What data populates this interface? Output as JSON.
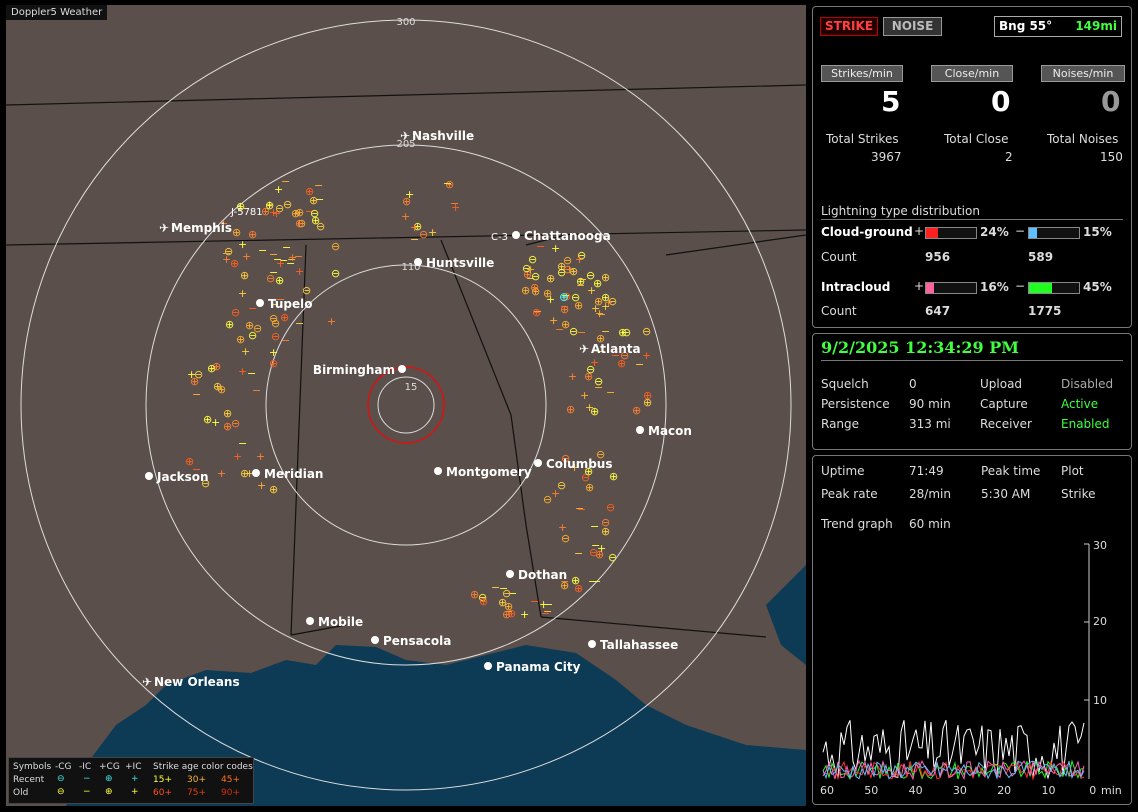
{
  "app_title": "Doppler5 Weather",
  "map": {
    "range_labels": [
      "300",
      "205",
      "110",
      "15"
    ],
    "cities": [
      "Nashville",
      "Memphis",
      "Chattanooga",
      "Huntsville",
      "Tupelo",
      "Atlanta",
      "Birmingham",
      "Macon",
      "Jackson",
      "Meridian",
      "Montgomery",
      "Columbus",
      "Dothan",
      "Mobile",
      "Pensacola",
      "Tallahassee",
      "Panama City",
      "New Orleans"
    ],
    "marker_labels": [
      "J-5781",
      "C-3"
    ]
  },
  "legend": {
    "symbols_label": "Symbols",
    "types": [
      "-CG",
      "-IC",
      "+CG",
      "+IC"
    ],
    "rows": [
      "Recent",
      "Old"
    ],
    "age_title": "Strike age color codes",
    "ages_recent": [
      "15+",
      "30+",
      "45+"
    ],
    "ages_old": [
      "60+",
      "75+",
      "90+"
    ],
    "colors": [
      "#ffff40",
      "#ffb030",
      "#ff7020",
      "#ff5020",
      "#e04010",
      "#d03010"
    ]
  },
  "top_panel": {
    "strike_button": "STRIKE",
    "noise_button": "NOISE",
    "bearing": "Bng 55°",
    "distance": "149mi",
    "rates": [
      {
        "label": "Strikes/min",
        "value": "5"
      },
      {
        "label": "Close/min",
        "value": "0"
      },
      {
        "label": "Noises/min",
        "value": "0"
      }
    ],
    "totals": [
      {
        "label": "Total Strikes",
        "value": "3967"
      },
      {
        "label": "Total Close",
        "value": "2"
      },
      {
        "label": "Total Noises",
        "value": "150"
      }
    ],
    "distribution_title": "Lightning type distribution",
    "cloud_ground": {
      "label": "Cloud-ground",
      "pos_pct": "24%",
      "neg_pct": "15%",
      "pos_fill": 0.24,
      "neg_fill": 0.15,
      "count_label": "Count",
      "pos_count": "956",
      "neg_count": "589"
    },
    "intracloud": {
      "label": "Intracloud",
      "pos_pct": "16%",
      "neg_pct": "45%",
      "pos_fill": 0.16,
      "neg_fill": 0.45,
      "count_label": "Count",
      "pos_count": "647",
      "neg_count": "1775"
    },
    "plus": "+",
    "minus": "−"
  },
  "status_panel": {
    "datetime": "9/2/2025 12:34:29 PM",
    "rows": [
      {
        "label": "Squelch",
        "value": "0",
        "label2": "Upload",
        "value2": "Disabled"
      },
      {
        "label": "Persistence",
        "value": "90 min",
        "label2": "Capture",
        "value2": "Active"
      },
      {
        "label": "Range",
        "value": "313 mi",
        "label2": "Receiver",
        "value2": "Enabled"
      }
    ]
  },
  "trend_panel": {
    "uptime_label": "Uptime",
    "uptime": "71:49",
    "peak_time_label": "Peak time",
    "peak_time": "5:30 AM",
    "plot_label": "Plot",
    "plot_value": "Strike",
    "peak_rate_label": "Peak rate",
    "peak_rate": "28/min",
    "trend_label": "Trend graph",
    "trend_value": "60 min",
    "y_ticks": [
      "30",
      "20",
      "10"
    ],
    "x_ticks": [
      "60",
      "50",
      "40",
      "30",
      "20",
      "10",
      "0"
    ],
    "x_unit": "min"
  }
}
